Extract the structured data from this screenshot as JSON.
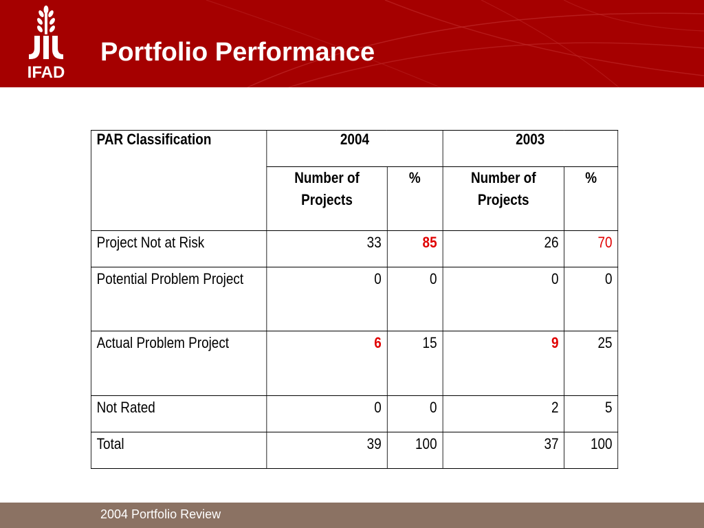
{
  "header": {
    "title": "Portfolio Performance",
    "logo_text": "IFAD",
    "background_color": "#a50000"
  },
  "table": {
    "row_header_label": "PAR Classification",
    "years": [
      "2004",
      "2003"
    ],
    "subheaders": [
      "Number of Projects",
      "%",
      "Number of Projects",
      "%"
    ],
    "rows": [
      {
        "label": "Project Not at Risk",
        "n2004": "33",
        "p2004": "85",
        "n2003": "26",
        "p2003": "70"
      },
      {
        "label": "Potential Problem Project",
        "n2004": "0",
        "p2004": "0",
        "n2003": "0",
        "p2003": "0"
      },
      {
        "label": "Actual Problem Project",
        "n2004": "6",
        "p2004": "15",
        "n2003": "9",
        "p2003": "25"
      },
      {
        "label": "Not Rated",
        "n2004": "0",
        "p2004": "0",
        "n2003": "2",
        "p2003": "5"
      },
      {
        "label": "Total",
        "n2004": "39",
        "p2004": "100",
        "n2003": "37",
        "p2003": "100"
      }
    ],
    "highlight_color": "#e00000"
  },
  "footer": {
    "text": "2004 Portfolio Review",
    "background_color": "#8b7263"
  }
}
